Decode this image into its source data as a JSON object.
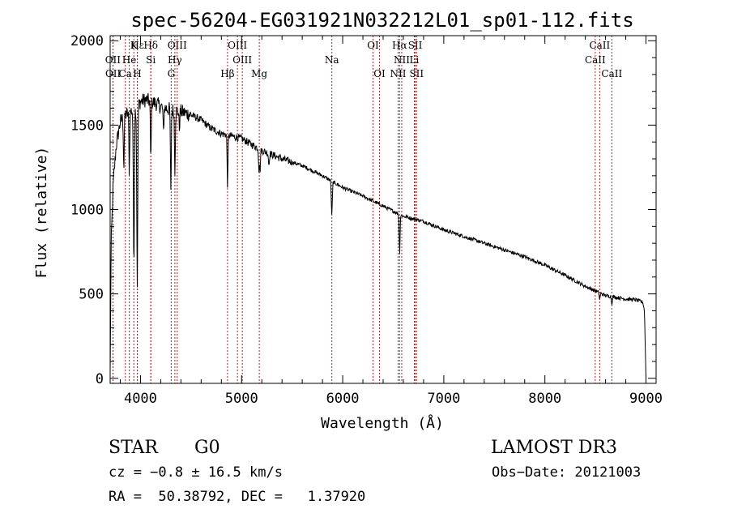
{
  "chart_data": {
    "type": "line",
    "title": "spec-56204-EG031921N032212L01_sp01-112.fits",
    "xlabel": "Wavelength (Å)",
    "ylabel": "Flux (relative)",
    "xlim": [
      3700,
      9100
    ],
    "ylim": [
      -30,
      2030
    ],
    "xticks": [
      4000,
      5000,
      6000,
      7000,
      8000,
      9000
    ],
    "xtick_labels": [
      "4000",
      "5000",
      "6000",
      "7000",
      "8000",
      "9000"
    ],
    "yticks": [
      0,
      500,
      1000,
      1500,
      2000
    ],
    "ytick_labels": [
      "0",
      "500",
      "1000",
      "1500",
      "2000"
    ],
    "continuum": [
      [
        3700,
        20
      ],
      [
        3710,
        800
      ],
      [
        3730,
        1150
      ],
      [
        3760,
        1380
      ],
      [
        3800,
        1520
      ],
      [
        3850,
        1560
      ],
      [
        3900,
        1580
      ],
      [
        3950,
        1600
      ],
      [
        4000,
        1640
      ],
      [
        4050,
        1650
      ],
      [
        4100,
        1640
      ],
      [
        4150,
        1630
      ],
      [
        4200,
        1610
      ],
      [
        4300,
        1590
      ],
      [
        4400,
        1580
      ],
      [
        4500,
        1560
      ],
      [
        4600,
        1530
      ],
      [
        4700,
        1480
      ],
      [
        4800,
        1450
      ],
      [
        5000,
        1420
      ],
      [
        5200,
        1350
      ],
      [
        5400,
        1300
      ],
      [
        5600,
        1260
      ],
      [
        5800,
        1200
      ],
      [
        6000,
        1130
      ],
      [
        6200,
        1080
      ],
      [
        6400,
        1020
      ],
      [
        6600,
        960
      ],
      [
        6800,
        930
      ],
      [
        7000,
        880
      ],
      [
        7200,
        840
      ],
      [
        7400,
        800
      ],
      [
        7600,
        760
      ],
      [
        7800,
        720
      ],
      [
        8000,
        670
      ],
      [
        8200,
        610
      ],
      [
        8400,
        545
      ],
      [
        8600,
        490
      ],
      [
        8800,
        470
      ],
      [
        8900,
        465
      ],
      [
        8970,
        450
      ],
      [
        8985,
        400
      ],
      [
        9000,
        0
      ]
    ],
    "absorption_features": [
      {
        "x": 3835,
        "depth": 300
      },
      {
        "x": 3889,
        "depth": 350
      },
      {
        "x": 3934,
        "depth": 900
      },
      {
        "x": 3968,
        "depth": 1050
      },
      {
        "x": 4102,
        "depth": 350
      },
      {
        "x": 4227,
        "depth": 150
      },
      {
        "x": 4300,
        "depth": 500
      },
      {
        "x": 4340,
        "depth": 350
      },
      {
        "x": 4384,
        "depth": 100
      },
      {
        "x": 4861,
        "depth": 300
      },
      {
        "x": 5172,
        "depth": 120
      },
      {
        "x": 5183,
        "depth": 120
      },
      {
        "x": 5270,
        "depth": 70
      },
      {
        "x": 5890,
        "depth": 150
      },
      {
        "x": 5896,
        "depth": 100
      },
      {
        "x": 6563,
        "depth": 230
      },
      {
        "x": 8542,
        "depth": 40
      },
      {
        "x": 8662,
        "depth": 40
      }
    ],
    "lines": [
      {
        "label": "Hε",
        "wave": 3970,
        "row": 0
      },
      {
        "label": "K",
        "wave": 3934,
        "row": 0
      },
      {
        "label": "Hδ",
        "wave": 4102,
        "row": 0
      },
      {
        "label": "OIII",
        "wave": 4363,
        "row": 0
      },
      {
        "label": "OIII",
        "wave": 4959,
        "row": 0
      },
      {
        "label": "OI",
        "wave": 6300,
        "row": 0
      },
      {
        "label": "Hα",
        "wave": 6563,
        "row": 0
      },
      {
        "label": "SII",
        "wave": 6717,
        "row": 0
      },
      {
        "label": "CaII",
        "wave": 8542,
        "row": 0
      },
      {
        "label": "OII",
        "wave": 3727,
        "row": 1
      },
      {
        "label": "He",
        "wave": 3889,
        "row": 1
      },
      {
        "label": "Si",
        "wave": 4102,
        "row": 1
      },
      {
        "label": "Hγ",
        "wave": 4340,
        "row": 1
      },
      {
        "label": "OIII",
        "wave": 5007,
        "row": 1
      },
      {
        "label": "Na",
        "wave": 5893,
        "row": 1
      },
      {
        "label": "NII",
        "wave": 6584,
        "row": 1
      },
      {
        "label": "Li",
        "wave": 6708,
        "row": 1
      },
      {
        "label": "CaII",
        "wave": 8498,
        "row": 1
      },
      {
        "label": "OII",
        "wave": 3729,
        "row": 2
      },
      {
        "label": "Ca",
        "wave": 3850,
        "row": 2
      },
      {
        "label": "H",
        "wave": 3968,
        "row": 2
      },
      {
        "label": "G",
        "wave": 4304,
        "row": 2
      },
      {
        "label": "Hβ",
        "wave": 4861,
        "row": 2
      },
      {
        "label": "Mg",
        "wave": 5175,
        "row": 2
      },
      {
        "label": "OI",
        "wave": 6364,
        "row": 2
      },
      {
        "label": "NII",
        "wave": 6548,
        "row": 2
      },
      {
        "label": "SII",
        "wave": 6731,
        "row": 2
      },
      {
        "label": "CaII",
        "wave": 8662,
        "row": 2
      }
    ],
    "line_color": "#b22222"
  },
  "info": {
    "class": "STAR",
    "subclass": "G0",
    "survey": "LAMOST DR3",
    "cz": "cz = −0.8 ± 16.5 km/s",
    "obs_date": "Obs−Date: 20121003",
    "radec": "RA =  50.38792, DEC =   1.37920"
  }
}
